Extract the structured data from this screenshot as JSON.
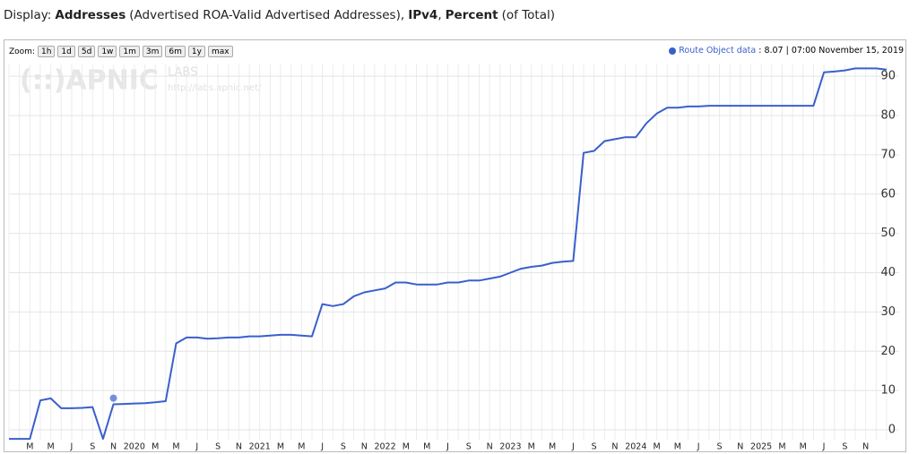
{
  "header": {
    "parts": [
      {
        "text": "Display:",
        "bold": false
      },
      {
        "text": "Addresses",
        "bold": true
      },
      {
        "text": "(Advertised ROA-Valid Advertised Addresses),",
        "bold": false
      },
      {
        "text": "IPv4",
        "bold": true
      },
      {
        "text": ",",
        "bold": false
      },
      {
        "text": "Percent",
        "bold": true
      },
      {
        "text": "(of Total)",
        "bold": false
      }
    ]
  },
  "toolbar": {
    "label": "Zoom:",
    "buttons": [
      "1h",
      "1d",
      "5d",
      "1w",
      "1m",
      "3m",
      "6m",
      "1y",
      "max"
    ]
  },
  "watermark": {
    "logo": "(::)APNIC",
    "labs": "LABS",
    "url": "http://labs.apnic.net/"
  },
  "readout": {
    "value": 8.07,
    "time": "07:00 November 15, 2019"
  },
  "chart_data": {
    "type": "line",
    "categories": [
      null,
      null,
      "M",
      null,
      "M",
      null,
      "J",
      null,
      "S",
      null,
      "N",
      null,
      "2020",
      null,
      "M",
      null,
      "M",
      null,
      "J",
      null,
      "S",
      null,
      "N",
      null,
      "2021",
      null,
      "M",
      null,
      "M",
      null,
      "J",
      null,
      "S",
      null,
      "N",
      null,
      "2022",
      null,
      "M",
      null,
      "M",
      null,
      "J",
      null,
      "S",
      null,
      "N",
      null,
      "2023",
      null,
      "M",
      null,
      "M",
      null,
      "J",
      null,
      "S",
      null,
      "N",
      null,
      "2024",
      null,
      "M",
      null,
      "M",
      null,
      "J",
      null,
      "S",
      null,
      "N",
      null,
      "2025",
      null,
      "M",
      null,
      "M",
      null,
      "J",
      null,
      "S",
      null,
      "N",
      null,
      null
    ],
    "series": [
      {
        "name": "Route Object data",
        "color": "#3a5fcd",
        "values": [
          -2.3,
          -2.3,
          -2.3,
          7.5,
          8,
          5.5,
          5.5,
          5.6,
          5.8,
          -2.3,
          6.5,
          6.6,
          6.7,
          6.8,
          7,
          7.3,
          22,
          23.5,
          23.5,
          23.2,
          23.3,
          23.5,
          23.5,
          23.8,
          23.8,
          24,
          24.2,
          24.2,
          24,
          23.8,
          32,
          31.5,
          32,
          34,
          35,
          35.5,
          36,
          37.5,
          37.5,
          37,
          37,
          37,
          37.5,
          37.5,
          38,
          38,
          38.5,
          39,
          40,
          41,
          41.5,
          41.8,
          42.5,
          42.8,
          43,
          70.5,
          71,
          73.5,
          74,
          74.5,
          74.5,
          78,
          80.5,
          82,
          82,
          82.3,
          82.3,
          82.5,
          82.5,
          82.5,
          82.5,
          82.5,
          82.5,
          82.5,
          82.5,
          82.5,
          82.5,
          82.5,
          91,
          91.2,
          91.5,
          92,
          92,
          92,
          91.7
        ]
      }
    ],
    "ylim": [
      -2.5,
      93
    ],
    "yticks": [
      0,
      10,
      20,
      30,
      40,
      50,
      60,
      70,
      80,
      90
    ],
    "grid": true
  }
}
